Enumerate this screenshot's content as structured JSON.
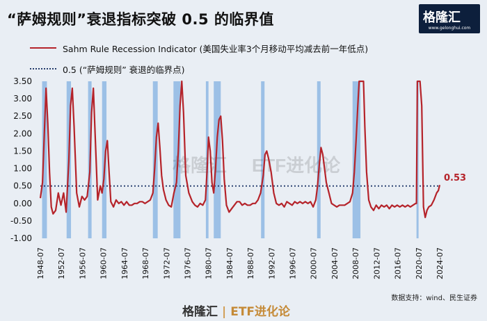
{
  "header": {
    "title": "“萨姆规则”衰退指标突破 0.5 的临界值",
    "logo_text": "格隆汇",
    "logo_url": "www.gelonghui.com"
  },
  "watermark": {
    "left": "格隆汇",
    "right": "ETF进化论"
  },
  "legend": {
    "series_label": "Sahm Rule Recession Indicator (美国失业率3个月移动平均减去前一年低点)",
    "threshold_label": "0.5 (“萨姆规则” 衰退的临界点)"
  },
  "source": "数据支持：wind、民生证券",
  "footer": {
    "brand": "格隆汇",
    "etf": "ETF进化论"
  },
  "chart_data": {
    "type": "line",
    "title": "“萨姆规则”衰退指标突破 0.5 的临界值",
    "xlabel": "",
    "ylabel": "",
    "xlim": [
      "1948-07",
      "2024-07"
    ],
    "ylim": [
      -1.0,
      3.5
    ],
    "yticks": [
      "3.50",
      "3.00",
      "2.50",
      "2.00",
      "1.50",
      "1.00",
      "0.50",
      "0.00",
      "-0.50",
      "-1.00"
    ],
    "xticks": [
      "1948-07",
      "1952-07",
      "1956-07",
      "1960-07",
      "1964-07",
      "1968-07",
      "1972-07",
      "1976-07",
      "1980-07",
      "1984-07",
      "1988-07",
      "1992-07",
      "1996-07",
      "2000-07",
      "2004-07",
      "2008-07",
      "2012-07",
      "2016-07",
      "2020-07",
      "2024-07"
    ],
    "threshold": 0.5,
    "last_value_label": "0.53",
    "colors": {
      "line": "#b5232a",
      "recession": "#9cc0e6",
      "threshold": "#233a6b"
    },
    "recessions": [
      [
        "1948-11",
        "1949-10"
      ],
      [
        "1953-07",
        "1954-05"
      ],
      [
        "1957-08",
        "1958-04"
      ],
      [
        "1960-04",
        "1961-02"
      ],
      [
        "1969-12",
        "1970-11"
      ],
      [
        "1973-11",
        "1975-03"
      ],
      [
        "1980-01",
        "1980-07"
      ],
      [
        "1981-07",
        "1982-11"
      ],
      [
        "1990-07",
        "1991-03"
      ],
      [
        "2001-03",
        "2001-11"
      ],
      [
        "2007-12",
        "2009-06"
      ],
      [
        "2020-02",
        "2020-04"
      ]
    ],
    "series": [
      {
        "name": "Sahm Rule Recession Indicator",
        "points": [
          [
            "1948-07",
            0.15
          ],
          [
            "1948-12",
            0.6
          ],
          [
            "1949-04",
            2.0
          ],
          [
            "1949-08",
            3.3
          ],
          [
            "1949-12",
            2.3
          ],
          [
            "1950-04",
            0.9
          ],
          [
            "1950-08",
            -0.1
          ],
          [
            "1950-12",
            -0.3
          ],
          [
            "1951-06",
            -0.2
          ],
          [
            "1951-12",
            0.3
          ],
          [
            "1952-06",
            -0.05
          ],
          [
            "1952-12",
            0.3
          ],
          [
            "1953-06",
            -0.25
          ],
          [
            "1953-12",
            1.2
          ],
          [
            "1954-04",
            2.8
          ],
          [
            "1954-08",
            3.3
          ],
          [
            "1954-12",
            2.2
          ],
          [
            "1955-06",
            0.3
          ],
          [
            "1955-12",
            -0.1
          ],
          [
            "1956-06",
            0.2
          ],
          [
            "1956-12",
            0.1
          ],
          [
            "1957-06",
            0.2
          ],
          [
            "1957-12",
            0.9
          ],
          [
            "1958-04",
            2.6
          ],
          [
            "1958-08",
            3.3
          ],
          [
            "1958-12",
            2.0
          ],
          [
            "1959-06",
            0.1
          ],
          [
            "1959-12",
            0.5
          ],
          [
            "1960-04",
            0.3
          ],
          [
            "1960-08",
            0.7
          ],
          [
            "1960-12",
            1.5
          ],
          [
            "1961-04",
            1.8
          ],
          [
            "1961-08",
            0.9
          ],
          [
            "1961-12",
            0.05
          ],
          [
            "1962-06",
            -0.1
          ],
          [
            "1962-12",
            0.1
          ],
          [
            "1963-06",
            0.0
          ],
          [
            "1963-12",
            0.05
          ],
          [
            "1964-06",
            -0.05
          ],
          [
            "1964-12",
            0.05
          ],
          [
            "1965-06",
            -0.05
          ],
          [
            "1965-12",
            -0.05
          ],
          [
            "1966-06",
            0.0
          ],
          [
            "1966-12",
            0.0
          ],
          [
            "1967-06",
            0.05
          ],
          [
            "1967-12",
            0.05
          ],
          [
            "1968-06",
            0.0
          ],
          [
            "1968-12",
            0.05
          ],
          [
            "1969-06",
            0.1
          ],
          [
            "1969-12",
            0.3
          ],
          [
            "1970-04",
            1.0
          ],
          [
            "1970-08",
            1.9
          ],
          [
            "1970-12",
            2.3
          ],
          [
            "1971-04",
            1.6
          ],
          [
            "1971-08",
            0.8
          ],
          [
            "1971-12",
            0.4
          ],
          [
            "1972-06",
            0.1
          ],
          [
            "1972-12",
            -0.05
          ],
          [
            "1973-06",
            -0.1
          ],
          [
            "1973-12",
            0.3
          ],
          [
            "1974-06",
            0.6
          ],
          [
            "1974-10",
            1.5
          ],
          [
            "1975-02",
            2.8
          ],
          [
            "1975-06",
            3.5
          ],
          [
            "1975-10",
            2.6
          ],
          [
            "1976-03",
            0.8
          ],
          [
            "1976-10",
            0.3
          ],
          [
            "1977-06",
            0.05
          ],
          [
            "1977-12",
            -0.05
          ],
          [
            "1978-06",
            -0.1
          ],
          [
            "1978-12",
            0.0
          ],
          [
            "1979-06",
            -0.05
          ],
          [
            "1979-12",
            0.1
          ],
          [
            "1980-04",
            1.0
          ],
          [
            "1980-07",
            1.9
          ],
          [
            "1980-11",
            1.5
          ],
          [
            "1981-03",
            0.6
          ],
          [
            "1981-07",
            0.3
          ],
          [
            "1981-11",
            1.0
          ],
          [
            "1982-03",
            1.9
          ],
          [
            "1982-07",
            2.4
          ],
          [
            "1982-11",
            2.5
          ],
          [
            "1983-03",
            1.8
          ],
          [
            "1983-07",
            0.7
          ],
          [
            "1983-12",
            -0.05
          ],
          [
            "1984-06",
            -0.25
          ],
          [
            "1984-12",
            -0.15
          ],
          [
            "1985-06",
            -0.05
          ],
          [
            "1985-12",
            0.05
          ],
          [
            "1986-06",
            0.05
          ],
          [
            "1986-12",
            -0.05
          ],
          [
            "1987-06",
            0.0
          ],
          [
            "1987-12",
            -0.05
          ],
          [
            "1988-06",
            -0.05
          ],
          [
            "1988-12",
            0.0
          ],
          [
            "1989-06",
            0.0
          ],
          [
            "1989-12",
            0.1
          ],
          [
            "1990-06",
            0.3
          ],
          [
            "1990-12",
            0.8
          ],
          [
            "1991-04",
            1.4
          ],
          [
            "1991-08",
            1.5
          ],
          [
            "1991-12",
            1.3
          ],
          [
            "1992-06",
            0.9
          ],
          [
            "1992-12",
            0.3
          ],
          [
            "1993-06",
            0.0
          ],
          [
            "1993-12",
            -0.05
          ],
          [
            "1994-06",
            0.0
          ],
          [
            "1994-12",
            -0.1
          ],
          [
            "1995-06",
            0.05
          ],
          [
            "1995-12",
            0.0
          ],
          [
            "1996-06",
            -0.05
          ],
          [
            "1996-12",
            0.05
          ],
          [
            "1997-06",
            0.0
          ],
          [
            "1997-12",
            0.05
          ],
          [
            "1998-06",
            0.0
          ],
          [
            "1998-12",
            0.05
          ],
          [
            "1999-06",
            0.0
          ],
          [
            "1999-12",
            0.05
          ],
          [
            "2000-06",
            -0.1
          ],
          [
            "2000-12",
            0.1
          ],
          [
            "2001-04",
            0.5
          ],
          [
            "2001-08",
            1.1
          ],
          [
            "2001-12",
            1.6
          ],
          [
            "2002-04",
            1.4
          ],
          [
            "2002-08",
            1.0
          ],
          [
            "2002-12",
            0.6
          ],
          [
            "2003-06",
            0.3
          ],
          [
            "2003-12",
            0.0
          ],
          [
            "2004-06",
            -0.05
          ],
          [
            "2004-12",
            -0.1
          ],
          [
            "2005-06",
            -0.05
          ],
          [
            "2005-12",
            -0.05
          ],
          [
            "2006-06",
            -0.05
          ],
          [
            "2006-12",
            0.0
          ],
          [
            "2007-06",
            0.05
          ],
          [
            "2007-12",
            0.3
          ],
          [
            "2008-04",
            0.9
          ],
          [
            "2008-08",
            1.8
          ],
          [
            "2008-12",
            2.8
          ],
          [
            "2009-03",
            3.5
          ],
          [
            "2009-08",
            3.5
          ],
          [
            "2010-01",
            3.5
          ],
          [
            "2010-04",
            2.2
          ],
          [
            "2010-08",
            0.9
          ],
          [
            "2011-01",
            0.1
          ],
          [
            "2011-06",
            -0.1
          ],
          [
            "2011-12",
            -0.2
          ],
          [
            "2012-06",
            -0.05
          ],
          [
            "2012-12",
            -0.15
          ],
          [
            "2013-06",
            -0.05
          ],
          [
            "2013-12",
            -0.1
          ],
          [
            "2014-06",
            -0.05
          ],
          [
            "2014-12",
            -0.15
          ],
          [
            "2015-06",
            -0.05
          ],
          [
            "2015-12",
            -0.1
          ],
          [
            "2016-06",
            -0.05
          ],
          [
            "2016-12",
            -0.1
          ],
          [
            "2017-06",
            -0.05
          ],
          [
            "2017-12",
            -0.1
          ],
          [
            "2018-06",
            -0.05
          ],
          [
            "2018-12",
            -0.1
          ],
          [
            "2019-06",
            -0.05
          ],
          [
            "2019-12",
            0.0
          ],
          [
            "2020-02",
            0.0
          ],
          [
            "2020-04",
            3.5
          ],
          [
            "2020-10",
            3.5
          ],
          [
            "2021-02",
            2.8
          ],
          [
            "2021-06",
            -0.1
          ],
          [
            "2021-10",
            -0.4
          ],
          [
            "2022-02",
            -0.2
          ],
          [
            "2022-06",
            -0.1
          ],
          [
            "2022-12",
            -0.05
          ],
          [
            "2023-06",
            0.1
          ],
          [
            "2023-12",
            0.3
          ],
          [
            "2024-04",
            0.37
          ],
          [
            "2024-07",
            0.53
          ]
        ]
      }
    ]
  }
}
